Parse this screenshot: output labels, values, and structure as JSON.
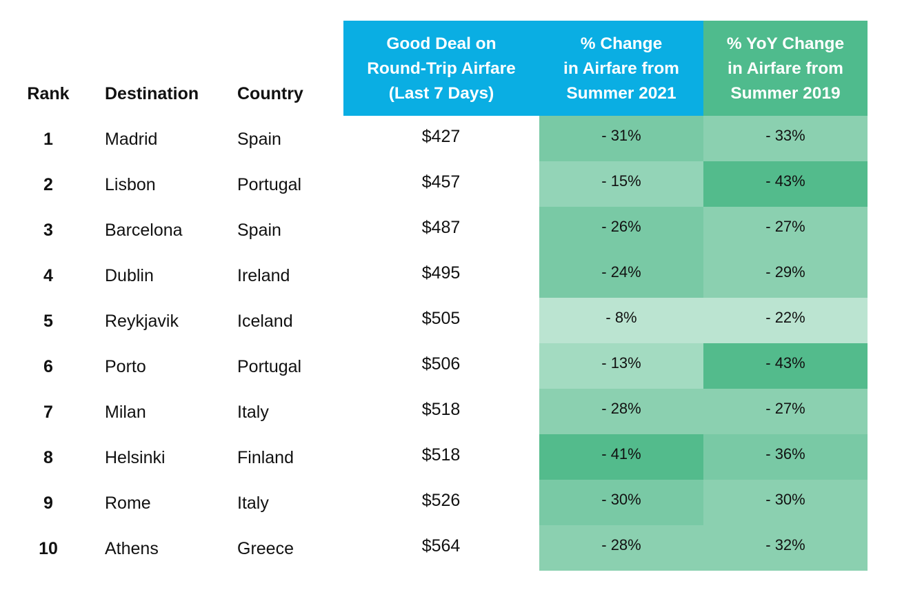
{
  "chart_data": {
    "type": "table",
    "columns": [
      "Rank",
      "Destination",
      "Country",
      [
        "Good Deal on",
        "Round-Trip Airfare",
        "(Last 7 Days)"
      ],
      [
        "% Change",
        "in Airfare from",
        "Summer 2021"
      ],
      [
        "% YoY Change",
        "in Airfare from",
        "Summer 2019"
      ]
    ],
    "rows": [
      {
        "rank": "1",
        "destination": "Madrid",
        "country": "Spain",
        "deal": "$427",
        "change_2021": "- 31%",
        "change_2019": "- 33%",
        "color_2021": "#79c9a5",
        "color_2019": "#8bd0b0"
      },
      {
        "rank": "2",
        "destination": "Lisbon",
        "country": "Portugal",
        "deal": "$457",
        "change_2021": "- 15%",
        "change_2019": "- 43%",
        "color_2021": "#93d4b7",
        "color_2019": "#53bb8c"
      },
      {
        "rank": "3",
        "destination": "Barcelona",
        "country": "Spain",
        "deal": "$487",
        "change_2021": "- 26%",
        "change_2019": "- 27%",
        "color_2021": "#79c9a5",
        "color_2019": "#8bd0b0"
      },
      {
        "rank": "4",
        "destination": "Dublin",
        "country": "Ireland",
        "deal": "$495",
        "change_2021": "- 24%",
        "change_2019": "- 29%",
        "color_2021": "#79c9a5",
        "color_2019": "#8bd0b0"
      },
      {
        "rank": "5",
        "destination": "Reykjavik",
        "country": "Iceland",
        "deal": "$505",
        "change_2021": "- 8%",
        "change_2019": "- 22%",
        "color_2021": "#bbe4d1",
        "color_2019": "#bbe4d1"
      },
      {
        "rank": "6",
        "destination": "Porto",
        "country": "Portugal",
        "deal": "$506",
        "change_2021": "- 13%",
        "change_2019": "- 43%",
        "color_2021": "#a3dbc1",
        "color_2019": "#53bb8c"
      },
      {
        "rank": "7",
        "destination": "Milan",
        "country": "Italy",
        "deal": "$518",
        "change_2021": "- 28%",
        "change_2019": "- 27%",
        "color_2021": "#8bd0b0",
        "color_2019": "#8bd0b0"
      },
      {
        "rank": "8",
        "destination": "Helsinki",
        "country": "Finland",
        "deal": "$518",
        "change_2021": "- 41%",
        "change_2019": "- 36%",
        "color_2021": "#53bb8c",
        "color_2019": "#79c9a5"
      },
      {
        "rank": "9",
        "destination": "Rome",
        "country": "Italy",
        "deal": "$526",
        "change_2021": "- 30%",
        "change_2019": "- 30%",
        "color_2021": "#79c9a5",
        "color_2019": "#8bd0b0"
      },
      {
        "rank": "10",
        "destination": "Athens",
        "country": "Greece",
        "deal": "$564",
        "change_2021": "- 28%",
        "change_2019": "- 32%",
        "color_2021": "#8bd0b0",
        "color_2019": "#8bd0b0"
      }
    ]
  },
  "colors": {
    "header_blue": "#0aaee3",
    "header_green": "#4fbb8d"
  }
}
